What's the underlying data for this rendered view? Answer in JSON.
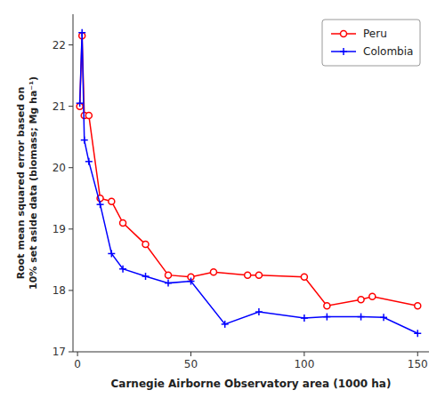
{
  "chart_data": {
    "type": "line",
    "xlabel": "Carnegie Airborne Observatory area (1000 ha)",
    "ylabel": "Root mean squared error based on\n10% set aside data (biomass; Mg ha⁻¹)",
    "series": [
      {
        "name": "Peru",
        "color": "#ff0000",
        "marker": "circle",
        "x": [
          1,
          2,
          3,
          5,
          10,
          15,
          20,
          30,
          40,
          50,
          60,
          75,
          80,
          100,
          110,
          125,
          130,
          150
        ],
        "values": [
          21.0,
          22.15,
          20.85,
          20.85,
          19.5,
          19.45,
          19.1,
          18.75,
          18.25,
          18.22,
          18.3,
          18.25,
          18.25,
          18.22,
          17.75,
          17.85,
          17.9,
          17.75
        ]
      },
      {
        "name": "Colombia",
        "color": "#0000ff",
        "marker": "plus",
        "x": [
          1,
          2,
          3,
          5,
          10,
          15,
          20,
          30,
          40,
          50,
          65,
          80,
          100,
          110,
          125,
          135,
          150
        ],
        "values": [
          21.05,
          22.2,
          20.45,
          20.1,
          19.4,
          18.6,
          18.35,
          18.23,
          18.12,
          18.15,
          17.45,
          17.65,
          17.55,
          17.57,
          17.57,
          17.56,
          17.3
        ]
      }
    ],
    "xlim": [
      -2,
      155
    ],
    "ylim": [
      17.0,
      22.5
    ],
    "xticks": [
      0,
      50,
      100,
      150
    ],
    "yticks": [
      17,
      18,
      19,
      20,
      21,
      22
    ],
    "grid": false,
    "legend": "upper right"
  }
}
